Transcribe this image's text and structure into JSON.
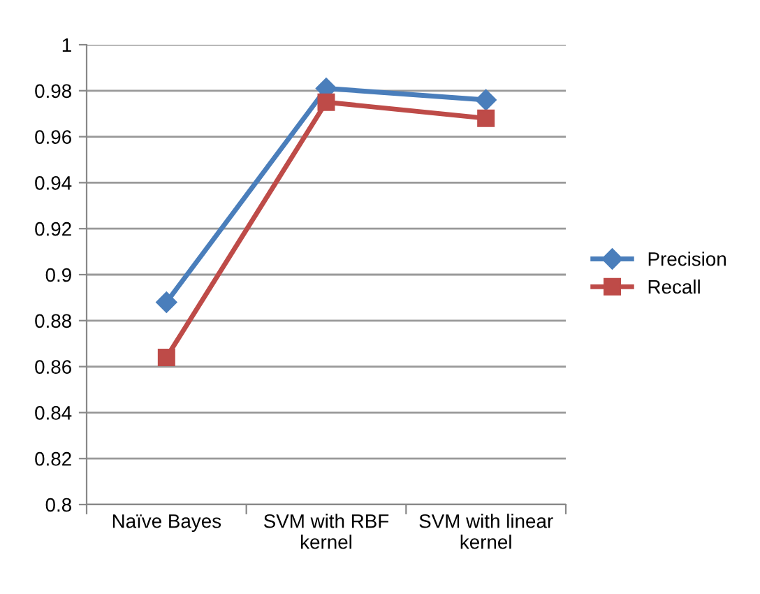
{
  "chart_data": {
    "type": "line",
    "categories": [
      "Naïve Bayes",
      "SVM with RBF\nkernel",
      "SVM with linear\nkernel"
    ],
    "series": [
      {
        "name": "Precision",
        "color": "#4a7ebb",
        "marker": "diamond",
        "values": [
          0.888,
          0.981,
          0.976
        ]
      },
      {
        "name": "Recall",
        "color": "#be4b48",
        "marker": "square",
        "values": [
          0.864,
          0.975,
          0.968
        ]
      }
    ],
    "ylim": [
      0.8,
      1
    ],
    "yticks": [
      {
        "value": 0.8,
        "label": "0.8"
      },
      {
        "value": 0.82,
        "label": "0.82"
      },
      {
        "value": 0.84,
        "label": "0.84"
      },
      {
        "value": 0.86,
        "label": "0.86"
      },
      {
        "value": 0.88,
        "label": "0.88"
      },
      {
        "value": 0.9,
        "label": "0.9"
      },
      {
        "value": 0.92,
        "label": "0.92"
      },
      {
        "value": 0.94,
        "label": "0.94"
      },
      {
        "value": 0.96,
        "label": "0.96"
      },
      {
        "value": 0.98,
        "label": "0.98"
      },
      {
        "value": 1,
        "label": "1"
      }
    ],
    "grid": "y",
    "legend": "right",
    "line_style": "solid"
  }
}
